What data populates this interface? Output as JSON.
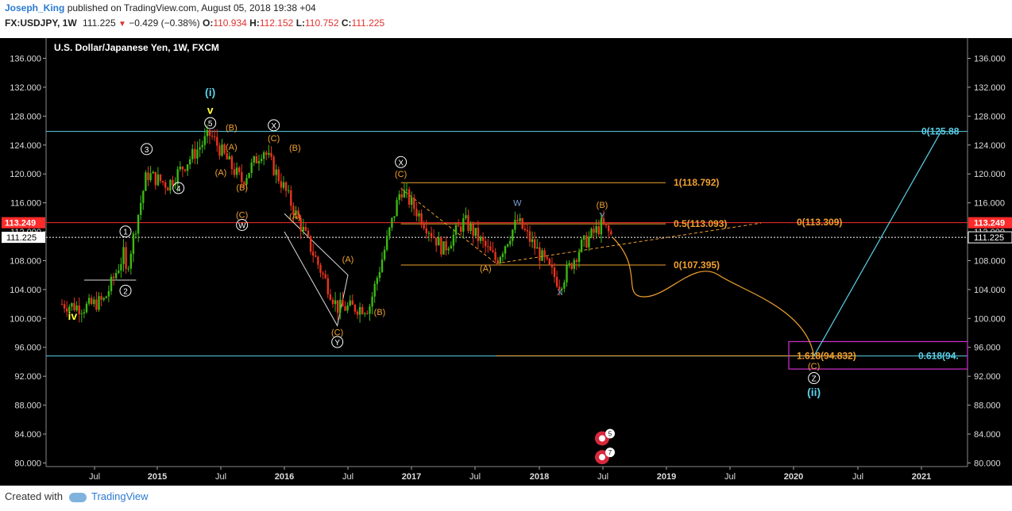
{
  "header": {
    "user": "Joseph_King",
    "published": "published on TradingView.com, August 05, 2018 19:38 +04",
    "symbol": "FX:USDJPY, 1W",
    "last": "111.225",
    "change_arrow": "▼",
    "change": "−0.429 (−0.38%)",
    "o_label": "O:",
    "o_value": "110.934",
    "h_label": "H:",
    "h_value": "112.152",
    "l_label": "L:",
    "l_value": "110.752",
    "c_label": "C:",
    "c_value": "111.225"
  },
  "footer": {
    "created": "Created with",
    "brand": "TradingView"
  },
  "colors": {
    "background": "#000000",
    "up": "#3cb815",
    "down": "#e8341e",
    "orange": "#f0a030",
    "cyan": "#5bd0e8",
    "red": "#ff2a2a",
    "white": "#ffffff",
    "yellow": "#ffff33",
    "magenta": "#d030d0"
  },
  "chart_data": {
    "type": "candlestick",
    "title": "U.S. Dollar/Japanese Yen, 1W, FXCM",
    "ylim": [
      79.5,
      138.8
    ],
    "yticks": [
      "136.000",
      "132.000",
      "128.000",
      "124.000",
      "120.000",
      "116.000",
      "112.000",
      "108.000",
      "104.000",
      "100.000",
      "96.000",
      "92.000",
      "88.000",
      "84.000",
      "80.000"
    ],
    "xticks": [
      "Jul",
      "2015",
      "Jul",
      "2016",
      "Jul",
      "2017",
      "Jul",
      "2018",
      "Jul",
      "2019",
      "Jul",
      "2020",
      "Jul",
      "2021"
    ],
    "price_labels": {
      "red": "113.249",
      "current": "111.225"
    },
    "close_path": [
      [
        "2014-04",
        102.0
      ],
      [
        "2014-06",
        101.5
      ],
      [
        "2014-08",
        102.5
      ],
      [
        "2014-09",
        106.0
      ],
      [
        "2014-10",
        109.5
      ],
      [
        "2014-10",
        106.0
      ],
      [
        "2014-12",
        120.0
      ],
      [
        "2015-02",
        118.5
      ],
      [
        "2015-06",
        125.5
      ],
      [
        "2015-08",
        121.0
      ],
      [
        "2015-09",
        119.0
      ],
      [
        "2015-11",
        123.5
      ],
      [
        "2016-01",
        118.0
      ],
      [
        "2016-06",
        101.5
      ],
      [
        "2016-09",
        101.5
      ],
      [
        "2016-12",
        118.0
      ],
      [
        "2017-04",
        109.5
      ],
      [
        "2017-06",
        113.5
      ],
      [
        "2017-09",
        108.0
      ],
      [
        "2017-11",
        113.5
      ],
      [
        "2018-03",
        104.7
      ],
      [
        "2018-05",
        110.0
      ],
      [
        "2018-07",
        113.0
      ],
      [
        "2018-08",
        111.2
      ]
    ],
    "projection_path": [
      [
        "2018-08",
        111.2
      ],
      [
        "2018-11",
        103.0
      ],
      [
        "2019-06",
        106.0
      ],
      [
        "2020-03",
        94.8
      ],
      [
        "2021-03",
        125.88
      ]
    ],
    "levels": [
      {
        "value": 125.88,
        "label": "0(125.88",
        "color": "#5bd0e8"
      },
      {
        "value": 118.792,
        "label": "1(118.792)",
        "color": "#f0a030"
      },
      {
        "value": 113.093,
        "label": "0.5(113.093)",
        "color": "#f0a030"
      },
      {
        "value": 113.309,
        "label": "0(113.309)",
        "color": "#f0a030"
      },
      {
        "value": 107.395,
        "label": "0(107.395)",
        "color": "#f0a030"
      },
      {
        "value": 94.832,
        "label": "1.618(94.832)",
        "color": "#f0a030"
      },
      {
        "value": 94.8,
        "label": "0.618(94.",
        "color": "#5bd0e8"
      }
    ],
    "wave_labels": [
      {
        "t": "(i)",
        "date": "2015-06",
        "y": 130.8,
        "color": "#5bd0e8",
        "bold": true
      },
      {
        "t": "v",
        "date": "2015-06",
        "y": 128.3,
        "color": "#ffff33",
        "bold": true
      },
      {
        "t": "5",
        "date": "2015-06",
        "y": 126.6,
        "circle": true
      },
      {
        "t": "(B)",
        "date": "2015-08",
        "y": 126.0,
        "color": "#f0a030"
      },
      {
        "t": "(A)",
        "date": "2015-08",
        "y": 123.3,
        "color": "#f0a030"
      },
      {
        "t": "(A)",
        "date": "2015-07",
        "y": 119.8,
        "color": "#f0a030"
      },
      {
        "t": "(B)",
        "date": "2015-09",
        "y": 117.7,
        "color": "#f0a030"
      },
      {
        "t": "(C)",
        "date": "2015-09",
        "y": 113.9,
        "color": "#f0a030"
      },
      {
        "t": "W",
        "date": "2015-09",
        "y": 112.5,
        "circle": true
      },
      {
        "t": "X",
        "date": "2015-12",
        "y": 126.3,
        "circle": true
      },
      {
        "t": "(C)",
        "date": "2015-12",
        "y": 124.5,
        "color": "#f0a030"
      },
      {
        "t": "(B)",
        "date": "2016-02",
        "y": 123.2,
        "color": "#f0a030"
      },
      {
        "t": "(A)",
        "date": "2016-02",
        "y": 113.7,
        "color": "#f0a030"
      },
      {
        "t": "3",
        "date": "2014-12",
        "y": 123.0,
        "circle": true
      },
      {
        "t": "4",
        "date": "2015-03",
        "y": 117.6,
        "circle": true
      },
      {
        "t": "1",
        "date": "2014-10",
        "y": 111.6,
        "circle": true
      },
      {
        "t": "2",
        "date": "2014-10",
        "y": 103.4,
        "circle": true
      },
      {
        "t": "iv",
        "date": "2014-05",
        "y": 99.8,
        "color": "#ffff33",
        "bold": true
      },
      {
        "t": "(A)",
        "date": "2016-07",
        "y": 107.8,
        "color": "#f0a030"
      },
      {
        "t": "(C)",
        "date": "2016-06",
        "y": 97.7,
        "color": "#f0a030"
      },
      {
        "t": "Y",
        "date": "2016-06",
        "y": 96.3,
        "circle": true
      },
      {
        "t": "(B)",
        "date": "2016-10",
        "y": 100.5,
        "color": "#f0a030"
      },
      {
        "t": "X",
        "date": "2016-12",
        "y": 121.2,
        "circle": true
      },
      {
        "t": "(C)",
        "date": "2016-12",
        "y": 119.6,
        "color": "#f0a030"
      },
      {
        "t": "(A)",
        "date": "2017-08",
        "y": 106.5,
        "color": "#f0a030"
      },
      {
        "t": "W",
        "date": "2017-11",
        "y": 115.6,
        "color": "#7aa0d8"
      },
      {
        "t": "X",
        "date": "2018-03",
        "y": 103.2,
        "color": "#7aa0d8"
      },
      {
        "t": "(B)",
        "date": "2018-07",
        "y": 115.3,
        "color": "#f0a030"
      },
      {
        "t": "Y",
        "date": "2018-07",
        "y": 113.8,
        "color": "#7aa0d8"
      },
      {
        "t": "(C)",
        "date": "2020-03",
        "y": 93.0,
        "color": "#f0a030"
      },
      {
        "t": "Z",
        "date": "2020-03",
        "y": 91.3,
        "circle": true
      },
      {
        "t": "(ii)",
        "date": "2020-03",
        "y": 89.3,
        "color": "#5bd0e8",
        "bold": true
      }
    ],
    "markers": [
      {
        "date": "2018-07",
        "y": 83.4,
        "count": "5"
      },
      {
        "date": "2018-07",
        "y": 80.8,
        "count": "7"
      }
    ]
  }
}
